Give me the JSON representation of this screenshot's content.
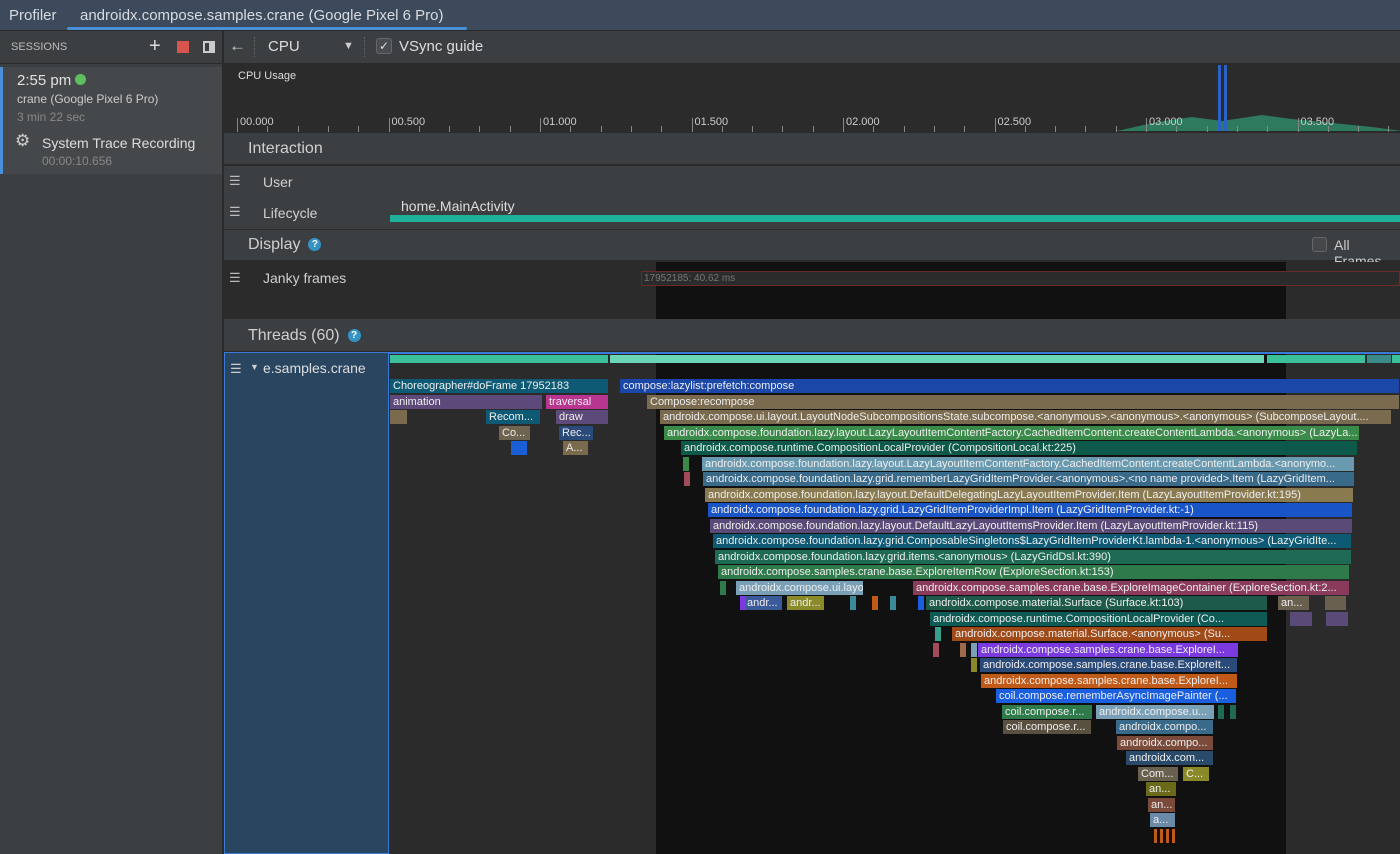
{
  "tabs": {
    "profiler": "Profiler",
    "active": "androidx.compose.samples.crane (Google Pixel 6 Pro)"
  },
  "sessions": {
    "title": "SESSIONS",
    "time": "2:55 pm",
    "device": "crane (Google Pixel 6 Pro)",
    "duration": "3 min 22 sec",
    "recording_title": "System Trace Recording",
    "recording_time": "00:00:10.656",
    "status_color": "#5fbf5f"
  },
  "toolbar": {
    "back": "←",
    "profiler_select": "CPU",
    "vsync_label": "VSync guide",
    "vsync_checked": true
  },
  "cpu": {
    "title": "CPU Usage",
    "ticks": [
      "00.000",
      "00.500",
      "01.000",
      "01.500",
      "02.000",
      "02.500",
      "03.000",
      "03.500"
    ]
  },
  "interaction": {
    "title": "Interaction",
    "rows": [
      "User",
      "Lifecycle"
    ],
    "lifecycle_event": "home.MainActivity"
  },
  "display": {
    "title": "Display",
    "help": "?",
    "all_frames": "All Frames",
    "all_frames_checked": false,
    "janky_label": "Janky frames",
    "janky_frame": "17952185: 40.62 ms"
  },
  "threads": {
    "title": "Threads (60)",
    "help": "?",
    "thread_name": "e.samples.crane",
    "slices": [
      {
        "label": "Choreographer#doFrame 17952183",
        "color": "#0e5a75"
      },
      {
        "label": "compose:lazylist:prefetch:compose",
        "color": "#1a47a8"
      },
      {
        "label": "animation",
        "color": "#5e4a7a"
      },
      {
        "label": "traversal",
        "color": "#b8368f"
      },
      {
        "label": "Compose:recompose",
        "color": "#7a6a4e"
      },
      {
        "label": "",
        "color": "#7a6a4e"
      },
      {
        "label": "Recom...",
        "color": "#0e5a75"
      },
      {
        "label": "draw",
        "color": "#5e4a7a"
      },
      {
        "label": "androidx.compose.ui.layout.LayoutNodeSubcompositionsState.subcompose.<anonymous>.<anonymous>.<anonymous> (SubcomposeLayout....",
        "color": "#7a6a4e"
      },
      {
        "label": "Co...",
        "color": "#6e6450"
      },
      {
        "label": "Rec...",
        "color": "#2a4a7a"
      },
      {
        "label": "androidx.compose.foundation.lazy.layout.LazyLayoutItemContentFactory.CachedItemContent.createContentLambda.<anonymous> (LazyLa...",
        "color": "#3a8a4a"
      },
      {
        "label": "",
        "color": "#1a5fd6"
      },
      {
        "label": "A...",
        "color": "#7a6a4e"
      },
      {
        "label": "androidx.compose.runtime.CompositionLocalProvider (CompositionLocal.kt:225)",
        "color": "#0e5a4a"
      },
      {
        "label": "androidx.compose.foundation.lazy.layout.LazyLayoutItemContentFactory.CachedItemContent.createContentLambda.<anonymo...",
        "color": "#6a9ab0"
      },
      {
        "label": "androidx.compose.foundation.lazy.grid.rememberLazyGridItemProvider.<anonymous>.<no name provided>.Item (LazyGridItem...",
        "color": "#3a6a8a"
      },
      {
        "label": "androidx.compose.foundation.lazy.layout.DefaultDelegatingLazyLayoutItemProvider.Item (LazyLayoutItemProvider.kt:195)",
        "color": "#8a7a50"
      },
      {
        "label": "androidx.compose.foundation.lazy.grid.LazyGridItemProviderImpl.Item (LazyGridItemProvider.kt:-1)",
        "color": "#1a55c8"
      },
      {
        "label": "androidx.compose.foundation.lazy.layout.DefaultLazyLayoutItemsProvider.Item (LazyLayoutItemProvider.kt:115)",
        "color": "#5a4a78"
      },
      {
        "label": "androidx.compose.foundation.lazy.grid.ComposableSingletons$LazyGridItemProviderKt.lambda-1.<anonymous> (LazyGridIte...",
        "color": "#0e5a75"
      },
      {
        "label": "androidx.compose.foundation.lazy.grid.items.<anonymous> (LazyGridDsl.kt:390)",
        "color": "#1e6a55"
      },
      {
        "label": "androidx.compose.samples.crane.base.ExploreItemRow (ExploreSection.kt:153)",
        "color": "#2e7a4a"
      },
      {
        "label": "androidx.compose.ui.layout.m...",
        "color": "#7aa0b8"
      },
      {
        "label": "androidx.compose.samples.crane.base.ExploreImageContainer (ExploreSection.kt:2...",
        "color": "#8a3a5a"
      },
      {
        "label": "andr...",
        "color": "#3a5a9a"
      },
      {
        "label": "andr...",
        "color": "#8a8a2a"
      },
      {
        "label": "androidx.compose.material.Surface (Surface.kt:103)",
        "color": "#1e5a4a"
      },
      {
        "label": "an...",
        "color": "#6a6050"
      },
      {
        "label": "",
        "color": "#6a6050"
      },
      {
        "label": "androidx.compose.runtime.CompositionLocalProvider (Co...",
        "color": "#0e5a55"
      },
      {
        "label": "androidx.compose.material.Surface.<anonymous> (Su...",
        "color": "#a04a18"
      },
      {
        "label": "androidx.compose.samples.crane.base.ExploreI...",
        "color": "#7a3ae0"
      },
      {
        "label": "androidx.compose.samples.crane.base.ExploreIt...",
        "color": "#2a4a7a"
      },
      {
        "label": "androidx.compose.samples.crane.base.ExploreI...",
        "color": "#c05a18"
      },
      {
        "label": "coil.compose.rememberAsyncImagePainter (...",
        "color": "#1a5fe0"
      },
      {
        "label": "coil.compose.r...",
        "color": "#2e7a4a"
      },
      {
        "label": "androidx.compose.u...",
        "color": "#7aa0b8"
      },
      {
        "label": "coil.compose.r...",
        "color": "#5a5040"
      },
      {
        "label": "androidx.compo...",
        "color": "#3a6a8a"
      },
      {
        "label": "androidx.compo...",
        "color": "#7a4a3a"
      },
      {
        "label": "androidx.com...",
        "color": "#2a4a6a"
      },
      {
        "label": "Com...",
        "color": "#6a6050"
      },
      {
        "label": "C...",
        "color": "#8a8a2a"
      },
      {
        "label": "an...",
        "color": "#6a6a1a"
      },
      {
        "label": "an...",
        "color": "#7a4a3a"
      },
      {
        "label": "a...",
        "color": "#6a8aa8"
      }
    ]
  }
}
